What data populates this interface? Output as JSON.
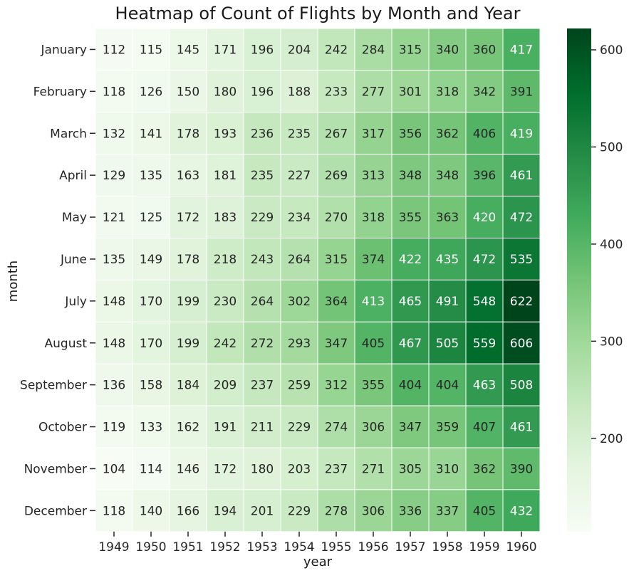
{
  "chart_data": {
    "type": "heatmap",
    "title": "Heatmap of Count of Flights by Month and Year",
    "xlabel": "year",
    "ylabel": "month",
    "x_categories": [
      "1949",
      "1950",
      "1951",
      "1952",
      "1953",
      "1954",
      "1955",
      "1956",
      "1957",
      "1958",
      "1959",
      "1960"
    ],
    "y_categories": [
      "January",
      "February",
      "March",
      "April",
      "May",
      "June",
      "July",
      "August",
      "September",
      "October",
      "November",
      "December"
    ],
    "values": [
      [
        112,
        115,
        145,
        171,
        196,
        204,
        242,
        284,
        315,
        340,
        360,
        417
      ],
      [
        118,
        126,
        150,
        180,
        196,
        188,
        233,
        277,
        301,
        318,
        342,
        391
      ],
      [
        132,
        141,
        178,
        193,
        236,
        235,
        267,
        317,
        356,
        362,
        406,
        419
      ],
      [
        129,
        135,
        163,
        181,
        235,
        227,
        269,
        313,
        348,
        348,
        396,
        461
      ],
      [
        121,
        125,
        172,
        183,
        229,
        234,
        270,
        318,
        355,
        363,
        420,
        472
      ],
      [
        135,
        149,
        178,
        218,
        243,
        264,
        315,
        374,
        422,
        435,
        472,
        535
      ],
      [
        148,
        170,
        199,
        230,
        264,
        302,
        364,
        413,
        465,
        491,
        548,
        622
      ],
      [
        148,
        170,
        199,
        242,
        272,
        293,
        347,
        405,
        467,
        505,
        559,
        606
      ],
      [
        136,
        158,
        184,
        209,
        237,
        259,
        312,
        355,
        404,
        404,
        463,
        508
      ],
      [
        119,
        133,
        162,
        191,
        211,
        229,
        274,
        306,
        347,
        359,
        407,
        461
      ],
      [
        104,
        114,
        146,
        172,
        180,
        203,
        237,
        271,
        305,
        310,
        362,
        390
      ],
      [
        118,
        140,
        166,
        194,
        201,
        229,
        278,
        306,
        336,
        337,
        405,
        432
      ]
    ],
    "colormap": "Greens",
    "vmin": 104,
    "vmax": 622,
    "annotated": true,
    "colorbar": {
      "ticks": [
        200,
        300,
        400,
        500,
        600
      ],
      "position": "right"
    }
  }
}
